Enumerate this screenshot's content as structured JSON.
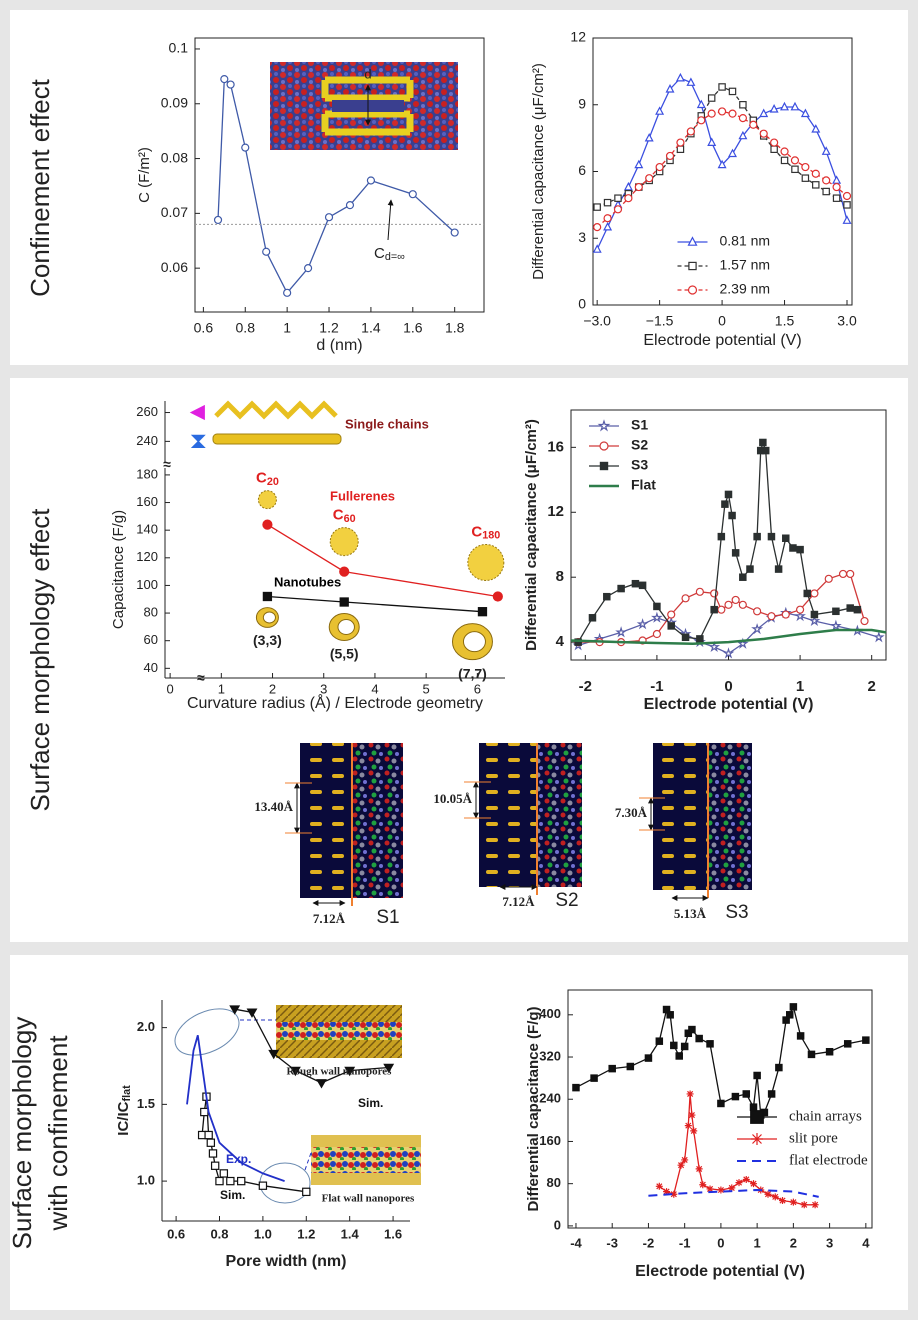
{
  "sections": [
    {
      "lines": [
        "Confinement effect"
      ]
    },
    {
      "lines": [
        "Surface morphology effect"
      ]
    },
    {
      "lines": [
        "Surface morphology",
        "with confinement"
      ]
    }
  ],
  "chart_data": [
    {
      "type": "line",
      "xlabel": "d (nm)",
      "ylabel": "C (F/m²)",
      "x": [
        0.67,
        0.7,
        0.73,
        0.8,
        0.9,
        1.0,
        1.1,
        1.2,
        1.3,
        1.4,
        1.6,
        1.8
      ],
      "series": [
        {
          "color": "#3f5aa8",
          "marker": "circle",
          "values": [
            0.0688,
            0.0945,
            0.0935,
            0.082,
            0.063,
            0.0555,
            0.06,
            0.0693,
            0.0715,
            0.076,
            0.0735,
            0.0665
          ]
        }
      ],
      "xlim": [
        0.56,
        1.94
      ],
      "ylim": [
        0.052,
        0.102
      ],
      "xticks": [
        0.6,
        0.8,
        1,
        1.2,
        1.4,
        1.6,
        1.8
      ],
      "yticks": [
        0.06,
        0.07,
        0.08,
        0.09,
        0.1
      ],
      "reference_line": 0.068,
      "annotation": {
        "text": "C",
        "sub": "d=∞"
      },
      "inset_label": "d"
    },
    {
      "type": "line",
      "xlabel": "Electrode potential (V)",
      "ylabel": "Differential capacitance (μF/cm²)",
      "x": [
        -3,
        -2.75,
        -2.5,
        -2.25,
        -2,
        -1.75,
        -1.5,
        -1.25,
        -1,
        -0.75,
        -0.5,
        -0.25,
        0,
        0.25,
        0.5,
        0.75,
        1,
        1.25,
        1.5,
        1.75,
        2,
        2.25,
        2.5,
        2.75,
        3
      ],
      "series": [
        {
          "name": "0.81 nm",
          "color": "#3b4fe0",
          "marker": "triangle",
          "values": [
            2.5,
            3.5,
            4.5,
            5.3,
            6.3,
            7.5,
            8.7,
            9.7,
            10.2,
            10.0,
            9.0,
            7.3,
            6.3,
            6.8,
            7.6,
            8.2,
            8.6,
            8.8,
            8.9,
            8.9,
            8.6,
            7.9,
            6.9,
            5.6,
            3.8
          ]
        },
        {
          "name": "1.57 nm",
          "color": "#333333",
          "marker": "square",
          "line": "dashed",
          "values": [
            4.4,
            4.6,
            4.8,
            5.0,
            5.3,
            5.6,
            6.0,
            6.5,
            7.0,
            7.7,
            8.5,
            9.3,
            9.8,
            9.6,
            9.0,
            8.3,
            7.6,
            7.0,
            6.5,
            6.1,
            5.7,
            5.4,
            5.1,
            4.8,
            4.5
          ]
        },
        {
          "name": "2.39 nm",
          "color": "#e03030",
          "marker": "circle",
          "line": "dashed",
          "values": [
            3.5,
            3.9,
            4.3,
            4.8,
            5.3,
            5.7,
            6.2,
            6.7,
            7.3,
            7.8,
            8.3,
            8.6,
            8.7,
            8.6,
            8.4,
            8.1,
            7.7,
            7.3,
            6.9,
            6.5,
            6.2,
            5.9,
            5.6,
            5.3,
            4.9
          ]
        }
      ],
      "xlim": [
        -3.1,
        3.12
      ],
      "ylim": [
        0,
        12
      ],
      "xticks": [
        {
          "value": -3,
          "label": "−3.0"
        },
        {
          "value": -1.5,
          "label": "−1.5"
        },
        0,
        1.5,
        {
          "value": 3,
          "label": "3.0"
        }
      ],
      "yticks": [
        0,
        3,
        6,
        9,
        12
      ],
      "legend": "lower center"
    },
    {
      "type": "line",
      "xlabel": "Curvature radius (Å) / Electrode geometry",
      "ylabel": "Capacitance (F/g)",
      "axis_break": "≈",
      "series": [
        {
          "name": "Fullerenes",
          "color": "#e02020",
          "marker": "circle",
          "marker_fill": true,
          "x": [
            1.9,
            3.4,
            6.4
          ],
          "values": [
            144,
            110,
            92
          ],
          "point_labels": [
            {
              "text": "C",
              "sub": "20"
            },
            {
              "text": "C",
              "sub": "60"
            },
            {
              "text": "C",
              "sub": "180"
            }
          ]
        },
        {
          "name": "Nanotubes",
          "color": "#111111",
          "marker": "square",
          "marker_fill": true,
          "x": [
            1.9,
            3.4,
            6.1
          ],
          "values": [
            92,
            88,
            81
          ],
          "point_labels": [
            "(3,3)",
            "(5,5)",
            "(7,7)"
          ]
        },
        {
          "name": "Single chains",
          "color": "#8b1a1a",
          "line": "none",
          "markers": [
            "triangle-left",
            "bowtie"
          ],
          "marker_colors": [
            "#e020e0",
            "#2a6be0"
          ],
          "marker_fill": true,
          "x": [
            0.55,
            0.55
          ],
          "values": [
            260,
            240
          ]
        }
      ],
      "xlim": [
        -0.1,
        6.54
      ],
      "ylim": [
        33,
        185
      ],
      "ylim_upper": [
        225,
        268
      ],
      "xticks": [
        0,
        1,
        2,
        3,
        4,
        5,
        6
      ],
      "yticks": [
        40,
        60,
        80,
        100,
        120,
        140,
        160,
        180,
        240,
        260
      ]
    },
    {
      "type": "line",
      "xlabel": "Electrode potential (V)",
      "ylabel": "Differential capacitance (μF/cm²)",
      "series": [
        {
          "name": "S1",
          "color": "#5a5fa8",
          "marker": "star",
          "x": [
            -2.1,
            -1.8,
            -1.5,
            -1.2,
            -1,
            -0.8,
            -0.6,
            -0.4,
            -0.2,
            0,
            0.2,
            0.4,
            0.6,
            0.8,
            1.0,
            1.2,
            1.5,
            1.8,
            2.1
          ],
          "values": [
            3.8,
            4.2,
            4.6,
            5.1,
            5.5,
            5.2,
            4.5,
            4.0,
            3.7,
            3.3,
            3.9,
            4.8,
            5.5,
            5.8,
            5.6,
            5.3,
            5.0,
            4.7,
            4.3
          ]
        },
        {
          "name": "S2",
          "color": "#d03a3a",
          "marker": "circle",
          "x": [
            -2.1,
            -1.8,
            -1.5,
            -1.2,
            -1.0,
            -0.8,
            -0.6,
            -0.4,
            -0.2,
            -0.1,
            0,
            0.1,
            0.2,
            0.4,
            0.6,
            0.8,
            1.0,
            1.2,
            1.4,
            1.6,
            1.7,
            1.9
          ],
          "values": [
            4.0,
            4.0,
            4.0,
            4.1,
            4.5,
            5.7,
            6.7,
            7.1,
            7.0,
            6.0,
            6.3,
            6.6,
            6.3,
            5.9,
            5.6,
            5.7,
            6.0,
            7.0,
            7.9,
            8.2,
            8.2,
            5.3
          ]
        },
        {
          "name": "S3",
          "color": "#2b3030",
          "marker": "square",
          "marker_fill": true,
          "x": [
            -2.1,
            -1.9,
            -1.7,
            -1.5,
            -1.3,
            -1.2,
            -1.0,
            -0.8,
            -0.6,
            -0.4,
            -0.2,
            -0.1,
            -0.05,
            0,
            0.05,
            0.1,
            0.2,
            0.3,
            0.4,
            0.45,
            0.48,
            0.52,
            0.6,
            0.7,
            0.8,
            0.9,
            1.0,
            1.1,
            1.2,
            1.5,
            1.7,
            1.8
          ],
          "values": [
            4.0,
            5.5,
            6.8,
            7.3,
            7.6,
            7.5,
            6.2,
            5.0,
            4.3,
            4.2,
            6.0,
            10.5,
            12.5,
            13.1,
            11.8,
            9.5,
            8.0,
            8.5,
            10.5,
            15.8,
            16.3,
            15.8,
            10.5,
            8.5,
            10.4,
            9.8,
            9.7,
            7.0,
            5.7,
            5.9,
            6.1,
            6.0
          ]
        },
        {
          "name": "Flat",
          "color": "#2e7d4a",
          "width": 2.5,
          "x": [
            -2.2,
            -1.5,
            -1,
            -0.5,
            0,
            0.5,
            1,
            1.5,
            2,
            2.2
          ],
          "values": [
            4.1,
            4.0,
            3.95,
            3.9,
            4.0,
            4.2,
            4.5,
            4.75,
            4.75,
            4.6
          ]
        }
      ],
      "xlim": [
        -2.2,
        2.2
      ],
      "ylim": [
        2.9,
        18.3
      ],
      "xticks": [
        -2,
        -1,
        0,
        1,
        2
      ],
      "yticks": [
        4,
        8,
        12,
        16
      ],
      "legend": "upper left"
    },
    {
      "type": "line",
      "xlabel": "Pore width (nm)",
      "ylabel": {
        "text": "IC/IC",
        "sub": "flat"
      },
      "series": [
        {
          "name": "Sim.",
          "color": "#111111",
          "marker": "triangle-down",
          "marker_fill": true,
          "x": [
            0.87,
            0.95,
            1.05,
            1.15,
            1.27,
            1.4,
            1.58
          ],
          "values": [
            2.12,
            2.1,
            1.83,
            1.72,
            1.64,
            1.72,
            1.74
          ]
        },
        {
          "name": "Sim.",
          "color": "#111111",
          "marker": "square",
          "x": [
            0.72,
            0.73,
            0.74,
            0.75,
            0.76,
            0.77,
            0.78,
            0.8,
            0.82,
            0.85,
            0.9,
            1.0,
            1.2
          ],
          "values": [
            1.3,
            1.45,
            1.55,
            1.3,
            1.25,
            1.18,
            1.1,
            1.0,
            1.05,
            1.0,
            1.0,
            0.97,
            0.93
          ]
        },
        {
          "name": "Exp.",
          "color": "#2230c8",
          "width": 1.8,
          "x": [
            0.65,
            0.68,
            0.7,
            0.72,
            0.75,
            0.8,
            0.9,
            1.0,
            1.1
          ],
          "values": [
            1.5,
            1.85,
            1.95,
            1.75,
            1.45,
            1.25,
            1.12,
            1.05,
            1.0
          ]
        }
      ],
      "xlim": [
        0.535,
        1.678
      ],
      "ylim": [
        0.74,
        2.18
      ],
      "xticks": [
        0.6,
        0.8,
        {
          "value": 1,
          "label": "1.0"
        },
        1.2,
        1.4,
        1.6
      ],
      "yticks": [
        {
          "value": 1,
          "label": "1.0"
        },
        1.5,
        {
          "value": 2,
          "label": "2.0"
        }
      ],
      "insets": [
        "Rough wall nanopores",
        "Flat wall nanopores"
      ]
    },
    {
      "type": "line",
      "xlabel": "Electrode potential (V)",
      "ylabel": "Differential capacitance (F/g)",
      "series": [
        {
          "name": "chain arrays",
          "color": "#111111",
          "marker": "square",
          "marker_fill": true,
          "x": [
            -4,
            -3.5,
            -3,
            -2.5,
            -2,
            -1.7,
            -1.5,
            -1.4,
            -1.3,
            -1.15,
            -1.0,
            -0.9,
            -0.8,
            -0.6,
            -0.3,
            0,
            0.4,
            0.7,
            0.9,
            1.0,
            1.1,
            1.2,
            1.4,
            1.6,
            1.8,
            1.9,
            2.0,
            2.2,
            2.5,
            3,
            3.5,
            4
          ],
          "values": [
            262,
            280,
            298,
            302,
            318,
            350,
            410,
            400,
            342,
            322,
            340,
            365,
            372,
            355,
            345,
            232,
            245,
            250,
            225,
            285,
            210,
            215,
            250,
            300,
            390,
            400,
            415,
            360,
            325,
            330,
            345,
            352
          ]
        },
        {
          "name": "slit pore",
          "color": "#e02020",
          "marker": "asterisk",
          "x": [
            -1.7,
            -1.5,
            -1.3,
            -1.1,
            -1.0,
            -0.9,
            -0.85,
            -0.8,
            -0.75,
            -0.6,
            -0.5,
            -0.3,
            0,
            0.3,
            0.5,
            0.7,
            0.9,
            1.1,
            1.3,
            1.5,
            1.7,
            2.0,
            2.3,
            2.6
          ],
          "values": [
            75,
            65,
            60,
            115,
            125,
            190,
            250,
            210,
            180,
            108,
            78,
            70,
            68,
            72,
            82,
            88,
            80,
            68,
            60,
            55,
            48,
            45,
            40,
            40
          ]
        },
        {
          "name": "flat electrode",
          "color": "#2030e0",
          "line": "dashed",
          "width": 2,
          "x": [
            -2,
            -1,
            0,
            1,
            2,
            2.7
          ],
          "values": [
            57,
            62,
            65,
            68,
            65,
            55
          ]
        }
      ],
      "xlim": [
        -4.22,
        4.17
      ],
      "ylim": [
        -4,
        447
      ],
      "xticks": [
        -4,
        -3,
        -2,
        -1,
        0,
        1,
        2,
        3,
        4
      ],
      "yticks": [
        0,
        80,
        160,
        240,
        320,
        400
      ],
      "legend": "center right"
    }
  ],
  "snapshots": [
    {
      "name": "S1",
      "gap_label": "13.40Å",
      "depth_label": "7.12Å"
    },
    {
      "name": "S2",
      "gap_label": "10.05Å",
      "depth_label": "7.12Å"
    },
    {
      "name": "S3",
      "gap_label": "7.30Å",
      "depth_label": "5.13Å"
    }
  ]
}
